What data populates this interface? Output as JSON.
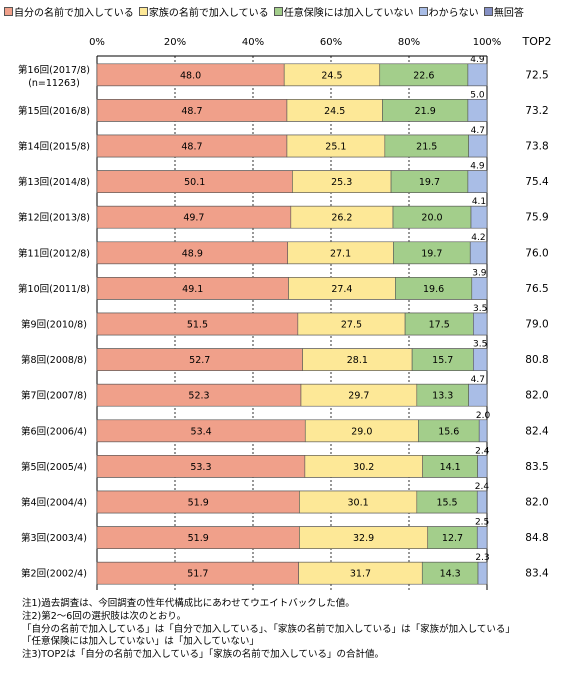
{
  "legend": {
    "items": [
      {
        "label": "自分の名前で加入している",
        "color": "#f0a08a"
      },
      {
        "label": "家族の名前で加入している",
        "color": "#fde897"
      },
      {
        "label": "任意保険には加入していない",
        "color": "#a3ce8b"
      },
      {
        "label": "わからない",
        "color": "#a9bde6"
      },
      {
        "label": "無回答",
        "color": "#8590c4"
      }
    ]
  },
  "top2_label": "TOP2",
  "chart_data": {
    "type": "bar",
    "orientation": "horizontal",
    "stacked": true,
    "percent": true,
    "xlim": [
      0,
      100
    ],
    "xticks": [
      "0%",
      "20%",
      "40%",
      "60%",
      "80%",
      "100%"
    ],
    "categories": [
      "第16回(2017/8)",
      "第15回(2016/8)",
      "第14回(2015/8)",
      "第13回(2014/8)",
      "第12回(2013/8)",
      "第11回(2012/8)",
      "第10回(2011/8)",
      "第9回(2010/8)",
      "第8回(2008/8)",
      "第7回(2007/8)",
      "第6回(2006/4)",
      "第5回(2005/4)",
      "第4回(2004/4)",
      "第3回(2003/4)",
      "第2回(2002/4)"
    ],
    "first_category_sublabel": "(n=11263)",
    "series": [
      {
        "name": "自分の名前で加入している",
        "color": "#f0a08a",
        "values": [
          48.0,
          48.7,
          48.7,
          50.1,
          49.7,
          48.9,
          49.1,
          51.5,
          52.7,
          52.3,
          53.4,
          53.3,
          51.9,
          51.9,
          51.7
        ]
      },
      {
        "name": "家族の名前で加入している",
        "color": "#fde897",
        "values": [
          24.5,
          24.5,
          25.1,
          25.3,
          26.2,
          27.1,
          27.4,
          27.5,
          28.1,
          29.7,
          29.0,
          30.2,
          30.1,
          32.9,
          31.7
        ]
      },
      {
        "name": "任意保険には加入していない",
        "color": "#a3ce8b",
        "values": [
          22.6,
          21.9,
          21.5,
          19.7,
          20.0,
          19.7,
          19.6,
          17.5,
          15.7,
          13.3,
          15.6,
          14.1,
          15.5,
          12.7,
          14.3
        ]
      },
      {
        "name": "わからない",
        "color": "#a9bde6",
        "values": [
          4.9,
          5.0,
          4.7,
          4.9,
          4.1,
          4.2,
          3.9,
          3.5,
          3.5,
          4.7,
          2.0,
          2.4,
          2.4,
          2.5,
          2.3
        ]
      }
    ],
    "top2": [
      72.5,
      73.2,
      73.8,
      75.4,
      75.9,
      76.0,
      76.5,
      79.0,
      80.8,
      82.0,
      82.4,
      83.5,
      82.0,
      84.8,
      83.4
    ]
  },
  "notes": [
    "注1)過去調査は、今回調査の性年代構成比にあわせてウエイトバックした値。",
    "注2)第2～6回の選択肢は次のとおり。",
    "「自分の名前で加入している」は「自分で加入している」、「家族の名前で加入している」は「家族が加入している」",
    "「任意保険には加入していない」は「加入していない」",
    "注3)TOP2は「自分の名前で加入している」「家族の名前で加入している」の合計値。"
  ]
}
